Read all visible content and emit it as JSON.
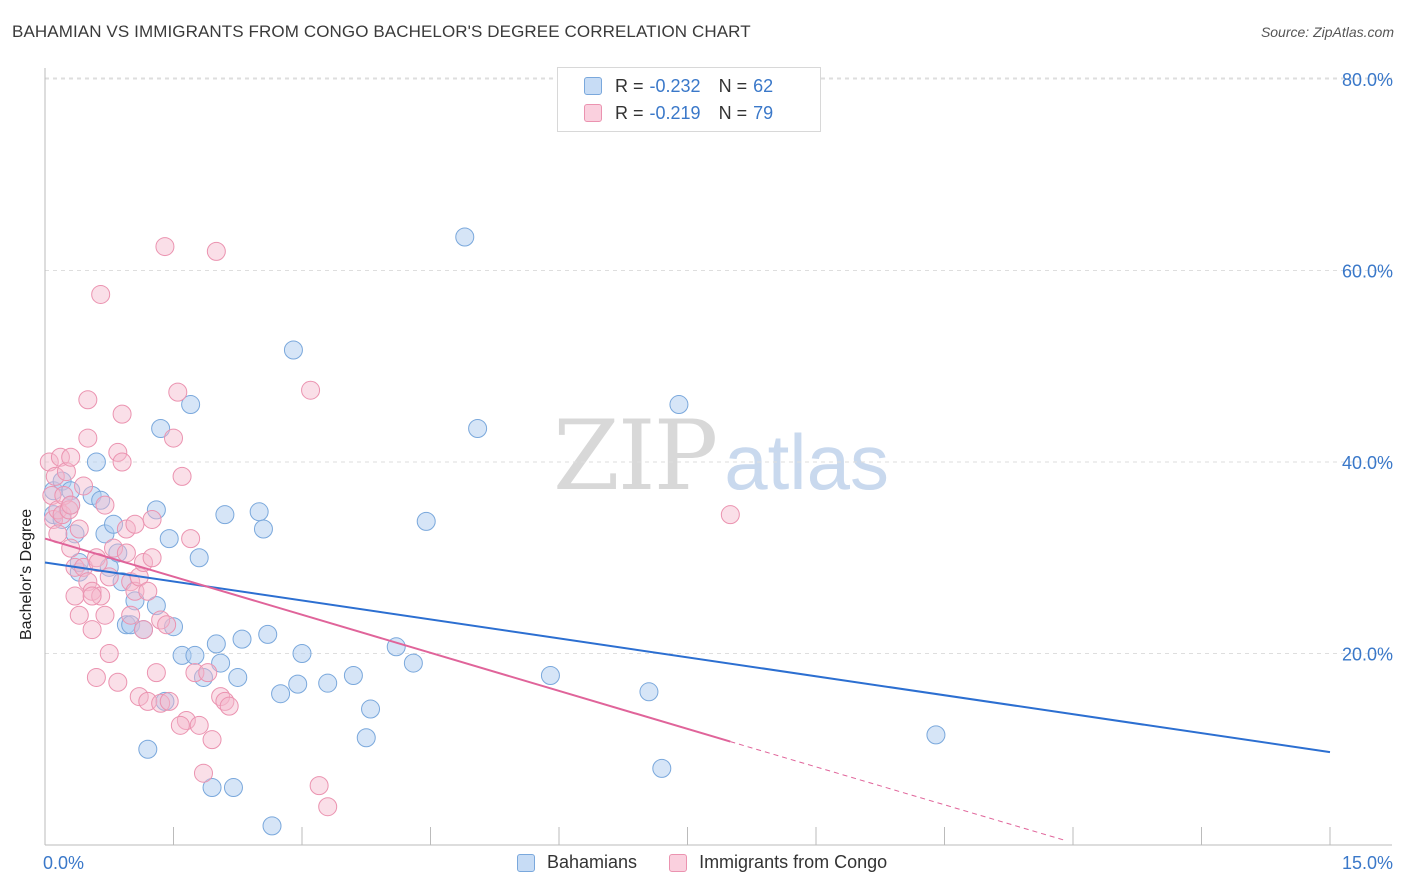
{
  "header": {
    "title": "BAHAMIAN VS IMMIGRANTS FROM CONGO BACHELOR'S DEGREE CORRELATION CHART",
    "source": "Source: ZipAtlas.com"
  },
  "watermark": {
    "zip": "ZIP",
    "atlas": "atlas"
  },
  "legend": {
    "rows": [
      {
        "r_label": "R =",
        "r_value": "-0.232",
        "n_label": "N =",
        "n_value": "62"
      },
      {
        "r_label": "R =",
        "r_value": "-0.219",
        "n_label": "N =",
        "n_value": "79"
      }
    ]
  },
  "bottom_legend": {
    "series1": "Bahamians",
    "series2": "Immigrants from Congo"
  },
  "colors": {
    "blue_fill": "#aecbef",
    "blue_stroke": "#7aa8dc",
    "blue_line": "#2c6fd1",
    "pink_fill": "#f5b7cb",
    "pink_stroke": "#eb93b0",
    "pink_line": "#e0649a",
    "grid": "#dedede",
    "tick_label": "#3a78c9"
  },
  "chart_data": {
    "type": "scatter",
    "title": "BAHAMIAN VS IMMIGRANTS FROM CONGO BACHELOR'S DEGREE CORRELATION CHART",
    "xlabel": "",
    "ylabel": "Bachelor's Degree",
    "xlim": [
      0,
      15
    ],
    "ylim": [
      0,
      80
    ],
    "x_tick_labels": [
      "0.0%",
      "15.0%"
    ],
    "y_ticks": [
      20,
      40,
      60,
      80
    ],
    "y_tick_labels": [
      "20.0%",
      "40.0%",
      "60.0%",
      "80.0%"
    ],
    "series": [
      {
        "name": "Bahamians",
        "R": -0.232,
        "N": 62,
        "trend": {
          "x0": 0,
          "y0": 29.5,
          "x1": 15,
          "y1": 9.7
        },
        "points": [
          [
            0.1,
            37.0
          ],
          [
            0.1,
            34.5
          ],
          [
            0.2,
            38.0
          ],
          [
            0.2,
            34.0
          ],
          [
            0.3,
            37.0
          ],
          [
            0.3,
            35.5
          ],
          [
            0.35,
            32.5
          ],
          [
            0.4,
            28.5
          ],
          [
            0.55,
            36.5
          ],
          [
            0.6,
            40.0
          ],
          [
            0.65,
            36.0
          ],
          [
            0.7,
            32.5
          ],
          [
            0.75,
            29.0
          ],
          [
            0.8,
            33.5
          ],
          [
            0.85,
            30.5
          ],
          [
            0.9,
            27.5
          ],
          [
            0.95,
            23.0
          ],
          [
            1.05,
            25.5
          ],
          [
            1.0,
            23.0
          ],
          [
            1.15,
            22.5
          ],
          [
            1.2,
            10.0
          ],
          [
            1.3,
            25.0
          ],
          [
            1.3,
            35.0
          ],
          [
            1.35,
            43.5
          ],
          [
            1.4,
            15.0
          ],
          [
            1.45,
            32.0
          ],
          [
            1.5,
            22.8
          ],
          [
            1.6,
            19.8
          ],
          [
            1.7,
            46.0
          ],
          [
            1.75,
            19.8
          ],
          [
            1.8,
            30.0
          ],
          [
            1.85,
            17.5
          ],
          [
            1.95,
            6.0
          ],
          [
            2.0,
            21.0
          ],
          [
            2.05,
            19.0
          ],
          [
            2.1,
            34.5
          ],
          [
            2.2,
            6.0
          ],
          [
            2.25,
            17.5
          ],
          [
            2.3,
            21.5
          ],
          [
            2.5,
            34.8
          ],
          [
            2.55,
            33.0
          ],
          [
            2.6,
            22.0
          ],
          [
            2.65,
            2.0
          ],
          [
            2.75,
            15.8
          ],
          [
            2.9,
            51.7
          ],
          [
            2.95,
            16.8
          ],
          [
            3.0,
            20.0
          ],
          [
            3.3,
            16.9
          ],
          [
            3.6,
            17.7
          ],
          [
            3.75,
            11.2
          ],
          [
            3.8,
            14.2
          ],
          [
            4.1,
            20.7
          ],
          [
            4.3,
            19.0
          ],
          [
            4.45,
            33.8
          ],
          [
            4.9,
            63.5
          ],
          [
            5.05,
            43.5
          ],
          [
            5.9,
            17.7
          ],
          [
            7.05,
            16.0
          ],
          [
            7.2,
            8.0
          ],
          [
            7.4,
            46.0
          ],
          [
            10.4,
            11.5
          ],
          [
            0.4,
            29.5
          ]
        ]
      },
      {
        "name": "Immigrants from Congo",
        "R": -0.219,
        "N": 79,
        "trend": {
          "x0": 0,
          "y0": 32.0,
          "x1": 8.0,
          "y1": 10.8,
          "dash_x1": 11.9,
          "dash_y1": 0.5
        },
        "points": [
          [
            0.05,
            40.0
          ],
          [
            0.08,
            36.5
          ],
          [
            0.1,
            34.0
          ],
          [
            0.12,
            38.5
          ],
          [
            0.15,
            35.0
          ],
          [
            0.15,
            32.5
          ],
          [
            0.18,
            40.5
          ],
          [
            0.2,
            34.5
          ],
          [
            0.22,
            36.5
          ],
          [
            0.25,
            39.0
          ],
          [
            0.28,
            35.0
          ],
          [
            0.3,
            31.0
          ],
          [
            0.3,
            40.5
          ],
          [
            0.35,
            29.0
          ],
          [
            0.35,
            26.0
          ],
          [
            0.4,
            24.0
          ],
          [
            0.4,
            33.0
          ],
          [
            0.45,
            29.0
          ],
          [
            0.45,
            37.5
          ],
          [
            0.5,
            42.5
          ],
          [
            0.5,
            27.5
          ],
          [
            0.5,
            46.5
          ],
          [
            0.55,
            26.5
          ],
          [
            0.55,
            22.5
          ],
          [
            0.6,
            17.5
          ],
          [
            0.6,
            30.0
          ],
          [
            0.65,
            57.5
          ],
          [
            0.65,
            26.0
          ],
          [
            0.7,
            24.0
          ],
          [
            0.7,
            35.5
          ],
          [
            0.75,
            20.0
          ],
          [
            0.75,
            28.0
          ],
          [
            0.8,
            31.0
          ],
          [
            0.85,
            41.0
          ],
          [
            0.85,
            17.0
          ],
          [
            0.9,
            45.0
          ],
          [
            0.9,
            40.0
          ],
          [
            0.95,
            30.5
          ],
          [
            0.95,
            33.0
          ],
          [
            1.0,
            27.5
          ],
          [
            1.0,
            24.0
          ],
          [
            1.05,
            26.5
          ],
          [
            1.05,
            33.5
          ],
          [
            1.1,
            28.0
          ],
          [
            1.1,
            15.5
          ],
          [
            1.15,
            29.5
          ],
          [
            1.15,
            22.5
          ],
          [
            1.2,
            15.0
          ],
          [
            1.2,
            26.5
          ],
          [
            1.25,
            34.0
          ],
          [
            1.25,
            30.0
          ],
          [
            1.3,
            18.0
          ],
          [
            1.35,
            14.8
          ],
          [
            1.35,
            23.5
          ],
          [
            1.4,
            62.5
          ],
          [
            1.45,
            15.0
          ],
          [
            1.5,
            42.5
          ],
          [
            1.55,
            47.3
          ],
          [
            1.6,
            38.5
          ],
          [
            1.65,
            13.0
          ],
          [
            1.7,
            32.0
          ],
          [
            1.75,
            18.0
          ],
          [
            1.8,
            12.5
          ],
          [
            1.85,
            7.5
          ],
          [
            1.9,
            18.0
          ],
          [
            1.95,
            11.0
          ],
          [
            2.0,
            62.0
          ],
          [
            2.05,
            15.5
          ],
          [
            2.1,
            15.0
          ],
          [
            2.15,
            14.5
          ],
          [
            3.1,
            47.5
          ],
          [
            3.2,
            6.2
          ],
          [
            3.3,
            4.0
          ],
          [
            8.0,
            34.5
          ],
          [
            0.55,
            26.0
          ],
          [
            0.62,
            29.5
          ],
          [
            0.3,
            35.5
          ],
          [
            1.42,
            23.0
          ],
          [
            1.58,
            12.5
          ]
        ]
      }
    ]
  }
}
